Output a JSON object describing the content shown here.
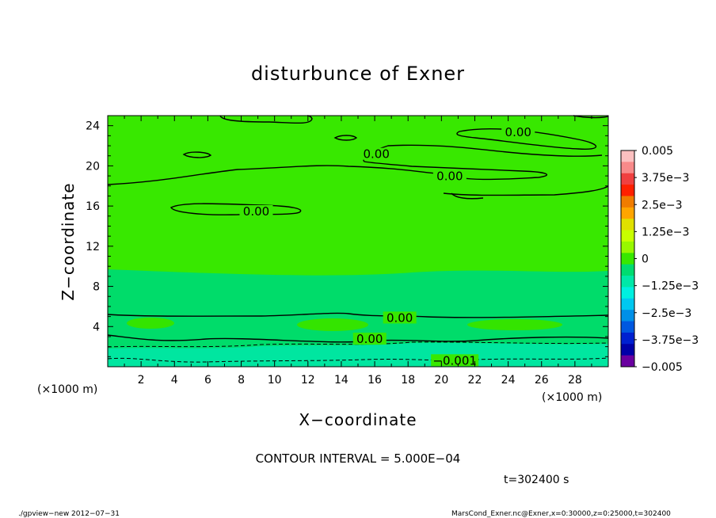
{
  "chart_data": {
    "type": "contour",
    "title": "disturbunce of Exner",
    "xlabel": "X−coordinate",
    "ylabel": "Z−coordinate",
    "x_unit_label": "(×1000 m)",
    "y_unit_label": "(×1000 m)",
    "xlim": [
      0,
      30
    ],
    "ylim": [
      0,
      25
    ],
    "x_ticks": [
      "2",
      "4",
      "6",
      "8",
      "10",
      "12",
      "14",
      "16",
      "18",
      "20",
      "22",
      "24",
      "26",
      "28"
    ],
    "y_ticks": [
      "4",
      "8",
      "12",
      "16",
      "20",
      "24"
    ],
    "colorbar": {
      "labels": [
        "0.005",
        "3.75e−3",
        "2.5e−3",
        "1.25e−3",
        "0",
        "−1.25e−3",
        "−2.5e−3",
        "−3.75e−3",
        "−0.005"
      ],
      "colors": [
        "#fcc0c0",
        "#f88a8a",
        "#f04040",
        "#ff2000",
        "#f07c00",
        "#ffa500",
        "#e0e000",
        "#c8ff00",
        "#98f800",
        "#38e800",
        "#00dc70",
        "#00e8a8",
        "#00f0e0",
        "#00c8f0",
        "#0090e8",
        "#0058e0",
        "#0020d0",
        "#0000a8",
        "#6a00a0"
      ]
    },
    "field_colors": {
      "zero": "#38e800",
      "slightly_negative": "#00dc6a",
      "negative_near_surface": "#00e6a0"
    },
    "contour_labels": [
      {
        "text": "0.00",
        "x": 17.5,
        "y": 4.7
      },
      {
        "text": "0.00",
        "x": 15.7,
        "y": 2.6
      },
      {
        "text": "−0.001",
        "x": 20.8,
        "y": 0.45
      },
      {
        "text": "0.00",
        "x": 8.9,
        "y": 15.3
      },
      {
        "text": "0.00",
        "x": 16.1,
        "y": 21.0
      },
      {
        "text": "0.00",
        "x": 20.5,
        "y": 18.8
      },
      {
        "text": "0.00",
        "x": 24.6,
        "y": 23.2
      }
    ],
    "contour_interval_text": "CONTOUR INTERVAL = 5.000E−04",
    "time_text": "t=302400  s"
  },
  "footer": {
    "left": "./gpview−new   2012−07−31",
    "right": "MarsCond_Exner.nc@Exner,x=0:30000,z=0:25000,t=302400"
  }
}
